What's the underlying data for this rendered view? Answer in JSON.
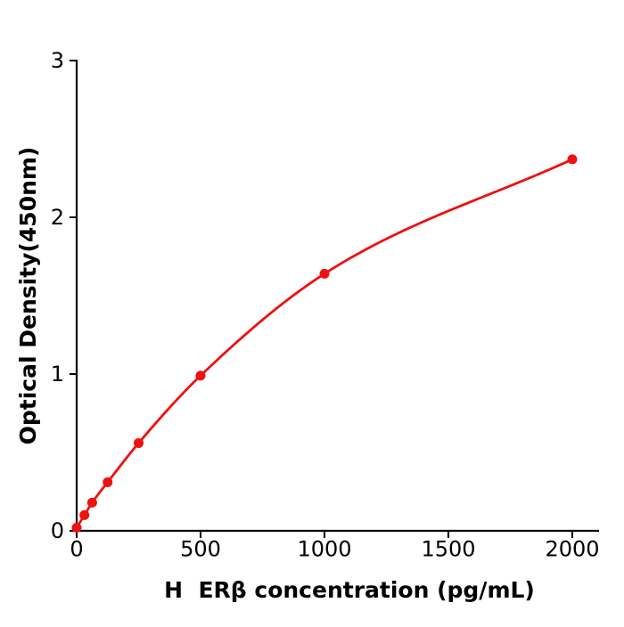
{
  "figure": {
    "background": "#ffffff"
  },
  "chart_data": {
    "type": "line",
    "title": "",
    "xlabel": "H  ERβ concentration (pg/mL)",
    "ylabel": "Optical Density(450nm)",
    "x": [
      0,
      31.25,
      62.5,
      125,
      250,
      500,
      1000,
      2000
    ],
    "y": [
      0.02,
      0.1,
      0.18,
      0.31,
      0.56,
      0.99,
      1.64,
      2.37
    ],
    "xticks": [
      0,
      500,
      1000,
      1500,
      2000
    ],
    "yticks": [
      0,
      1,
      2,
      3
    ],
    "xlim": [
      0,
      2100
    ],
    "ylim": [
      0,
      3
    ],
    "grid": false,
    "legend": null,
    "marker": "circle",
    "line_color": "#ee1111",
    "marker_color": "#ee1111",
    "axis_color": "#000000",
    "text_color": "#000000"
  }
}
